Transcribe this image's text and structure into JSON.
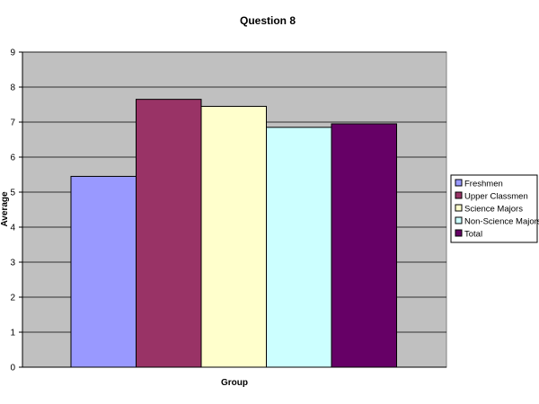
{
  "chart_data": {
    "type": "bar",
    "title": "Question 8",
    "xlabel": "Group",
    "ylabel": "Average",
    "ylim": [
      0,
      9
    ],
    "yticks": [
      0,
      1,
      2,
      3,
      4,
      5,
      6,
      7,
      8,
      9
    ],
    "grid": true,
    "plot_background": "#c0c0c0",
    "legend_position": "right",
    "series": [
      {
        "name": "Freshmen",
        "values": [
          5.45
        ],
        "color": "#9999ff"
      },
      {
        "name": "Upper Classmen",
        "values": [
          7.65
        ],
        "color": "#993366"
      },
      {
        "name": "Science Majors",
        "values": [
          7.45
        ],
        "color": "#ffffcc"
      },
      {
        "name": "Non-Science Majors",
        "values": [
          6.85
        ],
        "color": "#ccffff"
      },
      {
        "name": "Total",
        "values": [
          6.95
        ],
        "color": "#660066"
      }
    ]
  }
}
